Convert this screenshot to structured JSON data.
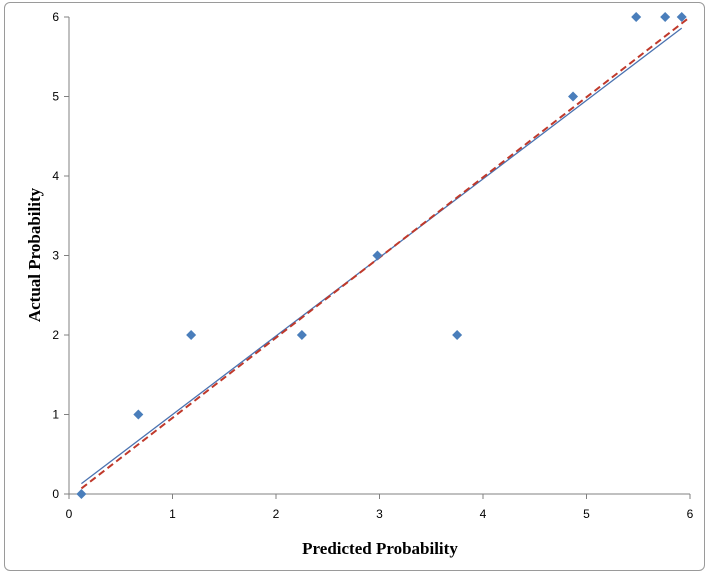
{
  "chart_data": {
    "type": "scatter",
    "title": "",
    "xlabel": "Predicted Probability",
    "ylabel": "Actual Probability",
    "xlim": [
      0,
      6
    ],
    "ylim": [
      0,
      6
    ],
    "xticks": [
      "0",
      "1",
      "2",
      "3",
      "4",
      "5",
      "6"
    ],
    "yticks": [
      "0",
      "1",
      "2",
      "3",
      "4",
      "5",
      "6"
    ],
    "grid": false,
    "legend": "none",
    "points": [
      {
        "x": 0.12,
        "y": 0
      },
      {
        "x": 0.67,
        "y": 1
      },
      {
        "x": 1.18,
        "y": 2
      },
      {
        "x": 2.25,
        "y": 2
      },
      {
        "x": 2.98,
        "y": 3
      },
      {
        "x": 3.75,
        "y": 2
      },
      {
        "x": 4.87,
        "y": 5
      },
      {
        "x": 5.48,
        "y": 6
      },
      {
        "x": 5.76,
        "y": 6
      },
      {
        "x": 5.92,
        "y": 6
      }
    ],
    "lines": [
      {
        "style": "solid",
        "color": "#4a72b0",
        "from": [
          0.12,
          0.13
        ],
        "to": [
          5.92,
          5.86
        ]
      },
      {
        "style": "dashed",
        "color": "#c0392b",
        "from": [
          0.12,
          0.07
        ],
        "to": [
          6.0,
          6.0
        ]
      }
    ],
    "marker_color": "#4a7ebb"
  }
}
